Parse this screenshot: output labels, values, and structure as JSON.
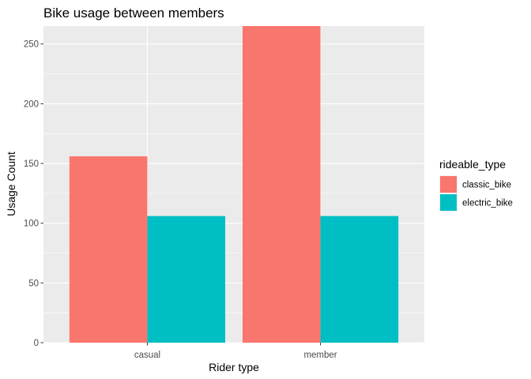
{
  "chart_data": {
    "type": "bar",
    "title": "Bike usage between members",
    "xlabel": "Rider type",
    "ylabel": "Usage Count",
    "categories": [
      "casual",
      "member"
    ],
    "series": [
      {
        "name": "classic_bike",
        "values": [
          156,
          265
        ],
        "color": "#F8766D"
      },
      {
        "name": "electric_bike",
        "values": [
          106,
          106
        ],
        "color": "#00BFC4"
      }
    ],
    "ylim": [
      0,
      265
    ],
    "yticks": [
      0,
      50,
      100,
      150,
      200,
      250
    ],
    "grid": true,
    "legend": {
      "title": "rideable_type",
      "placement": "right"
    },
    "panel_color": "#EBEBEB"
  }
}
